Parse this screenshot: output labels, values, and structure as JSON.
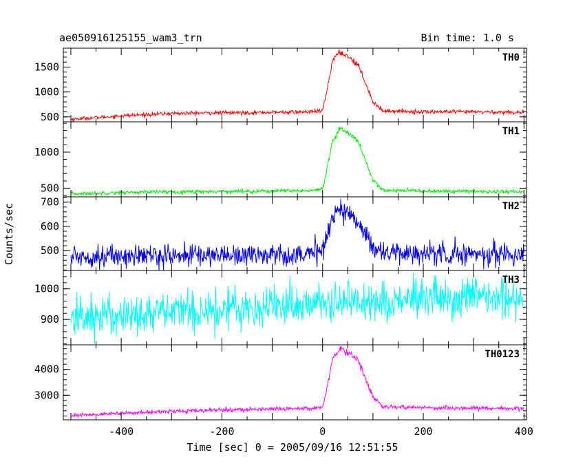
{
  "chart_data": {
    "type": "line",
    "title": "ae050916125155_wam3_trn",
    "subtitle": "Bin time: 1.0 s",
    "xlabel": "Time [sec] 0 = 2005/09/16 12:51:55",
    "ylabel": "Counts/sec",
    "xlim": [
      -515,
      405
    ],
    "x_ticks": [
      -400,
      -200,
      0,
      200,
      400
    ],
    "panels": [
      {
        "name": "TH0",
        "color": "#ff0000",
        "ylim": [
          400,
          1880
        ],
        "y_ticks": [
          500,
          1000,
          1500
        ],
        "x": [
          -500,
          -400,
          -300,
          -200,
          -100,
          -20,
          0,
          10,
          20,
          35,
          50,
          70,
          85,
          100,
          120,
          200,
          300,
          400
        ],
        "y": [
          450,
          520,
          570,
          580,
          590,
          600,
          620,
          1100,
          1650,
          1800,
          1720,
          1550,
          1200,
          800,
          620,
          600,
          600,
          590
        ]
      },
      {
        "name": "TH1",
        "color": "#00ee00",
        "ylim": [
          380,
          1420
        ],
        "y_ticks": [
          500,
          1000
        ],
        "x": [
          -500,
          -400,
          -300,
          -200,
          -100,
          -20,
          0,
          10,
          20,
          35,
          50,
          70,
          85,
          100,
          120,
          200,
          300,
          400
        ],
        "y": [
          420,
          440,
          450,
          455,
          460,
          465,
          480,
          800,
          1150,
          1330,
          1280,
          1150,
          900,
          600,
          470,
          460,
          455,
          450
        ]
      },
      {
        "name": "TH2",
        "color": "#0000ee",
        "ylim": [
          418,
          722
        ],
        "y_ticks": [
          500,
          600,
          700
        ],
        "x": [
          -500,
          -400,
          -300,
          -200,
          -100,
          -20,
          0,
          10,
          20,
          35,
          50,
          70,
          85,
          100,
          120,
          200,
          300,
          400
        ],
        "y": [
          475,
          478,
          480,
          482,
          484,
          486,
          500,
          580,
          640,
          670,
          655,
          620,
          570,
          520,
          490,
          488,
          486,
          484
        ]
      },
      {
        "name": "TH3",
        "color": "#00ffff",
        "ylim": [
          817,
          1060
        ],
        "y_ticks": [
          900,
          1000
        ],
        "x": [
          -500,
          -400,
          -300,
          -200,
          -100,
          0,
          100,
          200,
          300,
          400
        ],
        "y": [
          905,
          915,
          925,
          935,
          945,
          955,
          960,
          965,
          968,
          970
        ]
      },
      {
        "name": "TH0123",
        "color": "#ff00ff",
        "ylim": [
          2050,
          4950
        ],
        "y_ticks": [
          3000,
          4000
        ],
        "x": [
          -500,
          -400,
          -300,
          -200,
          -100,
          -20,
          0,
          10,
          20,
          35,
          50,
          70,
          85,
          100,
          120,
          200,
          300,
          400
        ],
        "y": [
          2220,
          2300,
          2380,
          2430,
          2470,
          2500,
          2550,
          3400,
          4400,
          4820,
          4650,
          4400,
          3700,
          2900,
          2550,
          2520,
          2500,
          2490
        ]
      }
    ]
  }
}
